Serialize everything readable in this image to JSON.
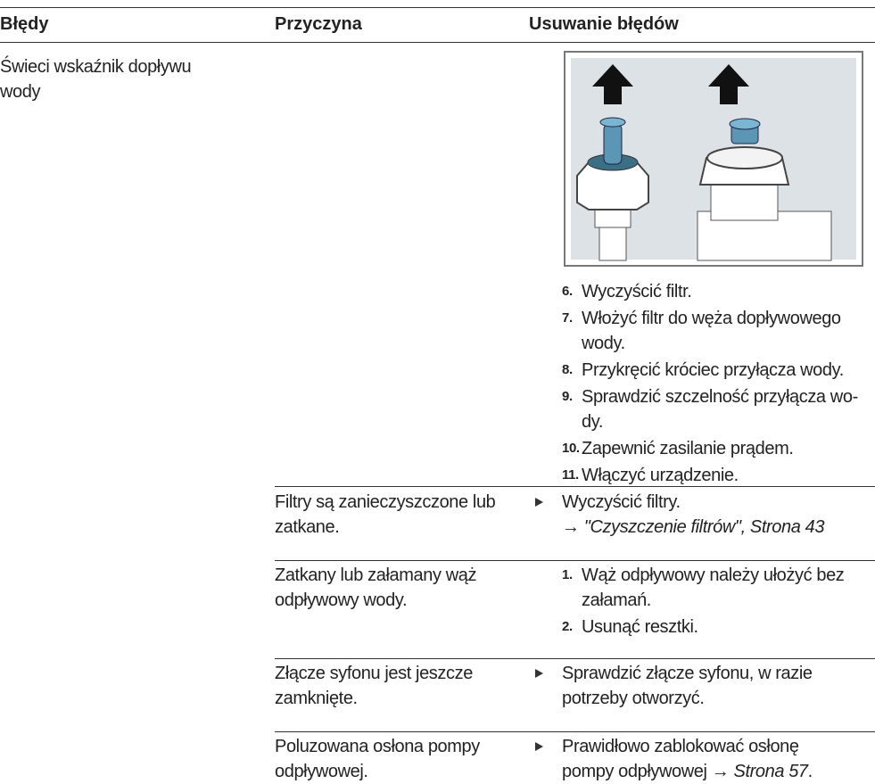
{
  "header": {
    "columns": [
      "Błędy",
      "Przyczyna",
      "Usuwanie błędów"
    ]
  },
  "rows": [
    {
      "error": [
        "Świeci wskaźnik dopływu",
        "wody"
      ],
      "cause": [],
      "steps": [
        {
          "num": "6.",
          "lines": [
            "Wyczyścić filtr."
          ]
        },
        {
          "num": "7.",
          "lines": [
            "Włożyć filtr do węża dopływowego",
            "wody."
          ]
        },
        {
          "num": "8.",
          "lines": [
            "Przykręcić króciec przyłącza wody."
          ]
        },
        {
          "num": "9.",
          "lines": [
            "Sprawdzić szczelność przyłącza wo-",
            "dy."
          ]
        },
        {
          "num": "10.",
          "lines": [
            "Zapewnić zasilanie prądem."
          ]
        },
        {
          "num": "11.",
          "lines": [
            "Włączyć urządzenie."
          ]
        }
      ]
    },
    {
      "cause": [
        "Filtry są zanieczyszczone lub",
        "zatkane."
      ],
      "remedy": [
        "Wyczyścić filtry."
      ],
      "link": "→ \"Czyszczenie filtrów\", Strona 43"
    },
    {
      "cause": [
        "Zatkany lub załamany wąż",
        "odpływowy wody."
      ],
      "steps": [
        {
          "num": "1.",
          "lines": [
            "Wąż odpływowy należy ułożyć bez",
            "załamań."
          ]
        },
        {
          "num": "2.",
          "lines": [
            "Usunąć resztki."
          ]
        }
      ]
    },
    {
      "cause": [
        "Złącze syfonu jest jeszcze",
        "zamknięte."
      ],
      "remedy": [
        "Sprawdzić złącze syfonu, w razie",
        "potrzeby otworzyć."
      ]
    },
    {
      "cause": [
        "Poluzowana osłona pompy",
        "odpływowej."
      ],
      "remedy": [
        "Prawidłowo zablokować osłonę",
        "pompy odpływowej →"
      ],
      "link": "Strona 57",
      "end": "."
    }
  ]
}
